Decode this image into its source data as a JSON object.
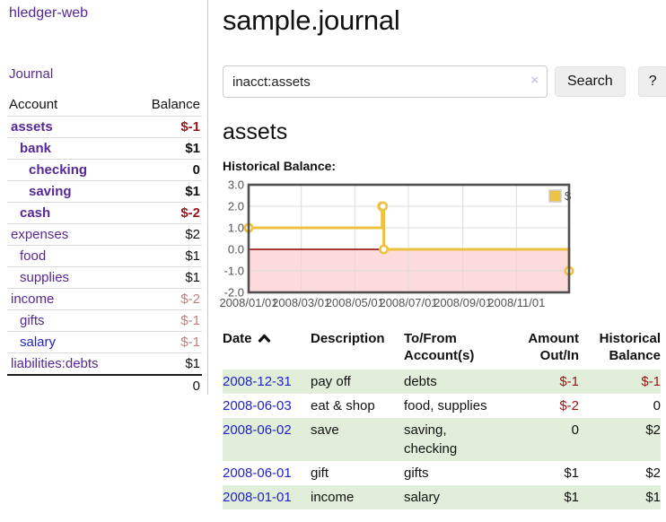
{
  "colors": {
    "link_purple": "#552896",
    "link_blue": "#2222cc",
    "negative_strong": "#941717",
    "negative_muted": "#bf7e7e",
    "row_green": "#e1efda",
    "chart_line": "#EDC240",
    "chart_negative_region": "#fbdbdb",
    "chart_zero_line": "#8b0000"
  },
  "sidebar": {
    "app_title": "hledger-web",
    "journal_link": "Journal",
    "accounts_table": {
      "headers": [
        "Account",
        "Balance"
      ],
      "rows": [
        {
          "name": "assets",
          "depth": 1,
          "bold": true,
          "balance": "$-1",
          "balance_class": "neg-strong",
          "link_class": "purple"
        },
        {
          "name": "bank",
          "depth": 2,
          "bold": true,
          "balance": "$1",
          "balance_class": "",
          "link_class": "purple"
        },
        {
          "name": "checking",
          "depth": 3,
          "bold": true,
          "balance": "0",
          "balance_class": "",
          "link_class": "purple"
        },
        {
          "name": "saving",
          "depth": 3,
          "bold": true,
          "balance": "$1",
          "balance_class": "",
          "link_class": "purple"
        },
        {
          "name": "cash",
          "depth": 2,
          "bold": true,
          "balance": "$-2",
          "balance_class": "neg-strong",
          "link_class": "purple"
        },
        {
          "name": "expenses",
          "depth": 1,
          "bold": false,
          "balance": "$2",
          "balance_class": "",
          "link_class": "purple"
        },
        {
          "name": "food",
          "depth": 2,
          "bold": false,
          "balance": "$1",
          "balance_class": "",
          "link_class": "purple"
        },
        {
          "name": "supplies",
          "depth": 2,
          "bold": false,
          "balance": "$1",
          "balance_class": "",
          "link_class": "purple"
        },
        {
          "name": "income",
          "depth": 1,
          "bold": false,
          "balance": "$-2",
          "balance_class": "neg-muted",
          "link_class": "purple"
        },
        {
          "name": "gifts",
          "depth": 2,
          "bold": false,
          "balance": "$-1",
          "balance_class": "neg-muted",
          "link_class": "purple"
        },
        {
          "name": "salary",
          "depth": 2,
          "bold": false,
          "balance": "$-1",
          "balance_class": "neg-muted",
          "link_class": "blue"
        },
        {
          "name": "liabilities:debts",
          "depth": 1,
          "bold": false,
          "balance": "$1",
          "balance_class": "",
          "link_class": "purple"
        }
      ],
      "total": "0"
    }
  },
  "main": {
    "title": "sample.journal",
    "search": {
      "value": "inacct:assets",
      "clear_icon": "×",
      "button_label": "Search",
      "help_label": "?"
    },
    "account_heading": "assets"
  },
  "chart_data": {
    "type": "step-line",
    "title": "Historical Balance:",
    "legend": {
      "label": "$",
      "position": "top-right"
    },
    "series": [
      {
        "name": "$",
        "color": "#EDC240",
        "points": [
          [
            "2008-01-01",
            1
          ],
          [
            "2008-06-01",
            2
          ],
          [
            "2008-06-02",
            2
          ],
          [
            "2008-06-03",
            0
          ],
          [
            "2008-12-31",
            -1
          ]
        ]
      }
    ],
    "ylim": [
      -2.0,
      3.0
    ],
    "yticks": [
      3.0,
      2.0,
      1.0,
      0.0,
      -1.0,
      -2.0
    ],
    "xticks": [
      "2008/01/01",
      "2008/03/01",
      "2008/05/01",
      "2008/07/01",
      "2008/09/01",
      "2008/11/01"
    ],
    "grid": true,
    "negative_region_color": "#fbdbdb",
    "zero_line_color": "#8b0000"
  },
  "register_table": {
    "headers": [
      {
        "lines": [
          "Date"
        ],
        "align": "left",
        "sort": "asc",
        "sortable": true
      },
      {
        "lines": [
          "Description"
        ],
        "align": "left"
      },
      {
        "lines": [
          "To/From",
          "Account(s)"
        ],
        "align": "left"
      },
      {
        "lines": [
          "Amount",
          "Out/In"
        ],
        "align": "right"
      },
      {
        "lines": [
          "Historical",
          "Balance"
        ],
        "align": "right"
      }
    ],
    "rows": [
      {
        "date": "2008-12-31",
        "description": "pay off",
        "accounts": "debts",
        "amount": "$-1",
        "amount_negative": true,
        "balance": "$-1",
        "balance_negative": true
      },
      {
        "date": "2008-06-03",
        "description": "eat & shop",
        "accounts": "food, supplies",
        "amount": "$-2",
        "amount_negative": true,
        "balance": "0",
        "balance_negative": false
      },
      {
        "date": "2008-06-02",
        "description": "save",
        "accounts": "saving, checking",
        "amount": "0",
        "amount_negative": false,
        "balance": "$2",
        "balance_negative": false
      },
      {
        "date": "2008-06-01",
        "description": "gift",
        "accounts": "gifts",
        "amount": "$1",
        "amount_negative": false,
        "balance": "$2",
        "balance_negative": false
      },
      {
        "date": "2008-01-01",
        "description": "income",
        "accounts": "salary",
        "amount": "$1",
        "amount_negative": false,
        "balance": "$1",
        "balance_negative": false
      }
    ]
  }
}
